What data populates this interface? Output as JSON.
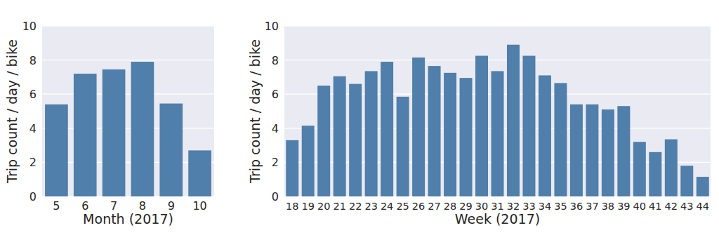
{
  "chart_data": [
    {
      "type": "bar",
      "xlabel": "Month (2017)",
      "ylabel": "Trip count / day / bike",
      "categories": [
        "5",
        "6",
        "7",
        "8",
        "9",
        "10"
      ],
      "values": [
        5.4,
        7.2,
        7.45,
        7.9,
        5.45,
        2.7
      ],
      "color": "#4f7faa",
      "ylim": [
        0,
        10
      ],
      "yticks": [
        0,
        2,
        4,
        6,
        8,
        10
      ],
      "grid": true
    },
    {
      "type": "bar",
      "xlabel": "Week (2017)",
      "ylabel": "Trip count / day / bike",
      "categories": [
        "18",
        "19",
        "20",
        "21",
        "22",
        "23",
        "24",
        "25",
        "26",
        "27",
        "28",
        "29",
        "30",
        "31",
        "32",
        "33",
        "34",
        "35",
        "36",
        "37",
        "38",
        "39",
        "40",
        "41",
        "42",
        "43",
        "44"
      ],
      "values": [
        3.3,
        4.15,
        6.5,
        7.05,
        6.6,
        7.35,
        7.9,
        5.85,
        8.15,
        7.65,
        7.25,
        6.95,
        8.25,
        7.35,
        8.9,
        8.25,
        7.1,
        6.65,
        5.4,
        5.4,
        5.1,
        5.3,
        3.2,
        2.6,
        3.35,
        1.8,
        1.15
      ],
      "color": "#4f7faa",
      "ylim": [
        0,
        10
      ],
      "yticks": [
        0,
        2,
        4,
        6,
        8,
        10
      ],
      "grid": true
    }
  ]
}
